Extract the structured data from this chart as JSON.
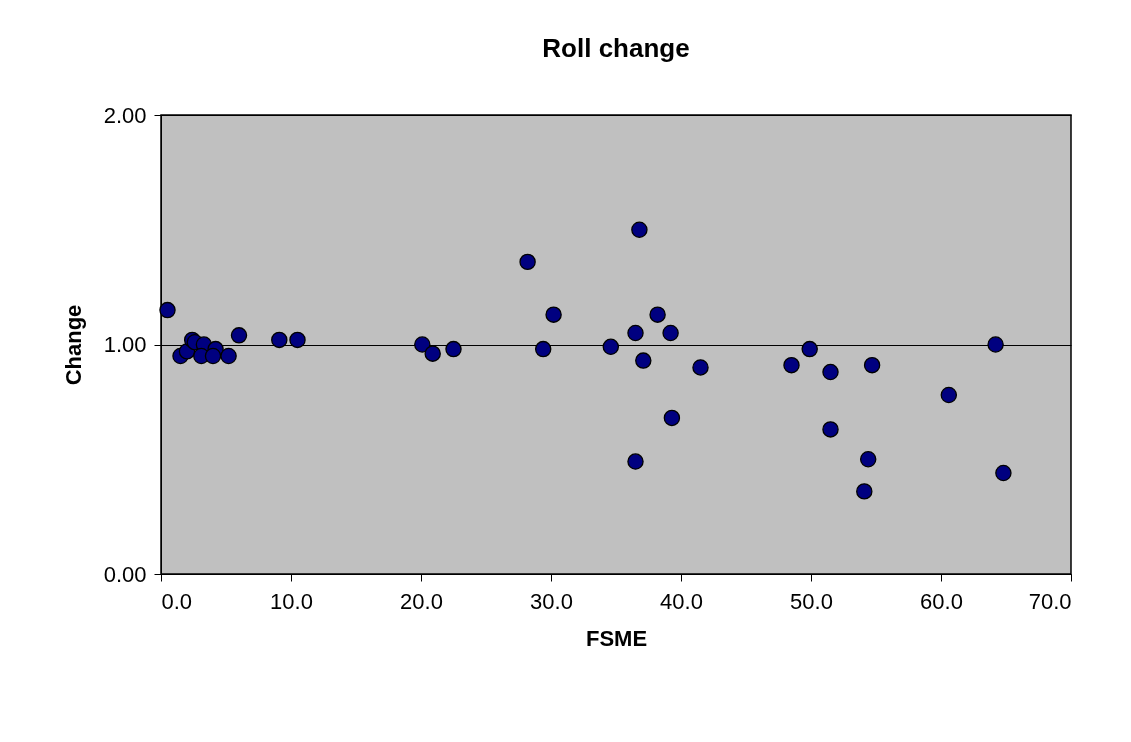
{
  "chart_data": {
    "type": "scatter",
    "title": "Roll change",
    "xlabel": "FSME",
    "ylabel": "Change",
    "x": [
      0.5,
      1.5,
      2.0,
      2.4,
      2.6,
      3.3,
      3.1,
      4.2,
      4.0,
      5.2,
      6.0,
      9.1,
      10.5,
      20.1,
      20.9,
      22.5,
      28.2,
      29.4,
      30.2,
      34.6,
      36.5,
      36.5,
      36.8,
      37.1,
      38.2,
      39.2,
      39.3,
      41.5,
      48.5,
      49.9,
      51.5,
      51.5,
      54.7,
      54.4,
      54.1,
      60.6,
      64.2,
      64.8
    ],
    "series": [
      {
        "color": "#000080",
        "values": [
          1.15,
          0.95,
          0.97,
          1.02,
          1.01,
          1.0,
          0.95,
          0.98,
          0.95,
          0.95,
          1.04,
          1.02,
          1.02,
          1.0,
          0.96,
          0.98,
          1.36,
          0.98,
          1.13,
          0.99,
          1.05,
          0.49,
          1.5,
          0.93,
          1.13,
          1.05,
          0.68,
          0.9,
          0.91,
          0.98,
          0.88,
          0.63,
          0.91,
          0.5,
          0.36,
          0.78,
          1.0,
          0.44
        ]
      }
    ],
    "xlim": [
      0,
      70
    ],
    "ylim": [
      0,
      2
    ],
    "xticks": [
      {
        "value": 0,
        "label": "0.0"
      },
      {
        "value": 10,
        "label": "10.0"
      },
      {
        "value": 20,
        "label": "20.0"
      },
      {
        "value": 30,
        "label": "30.0"
      },
      {
        "value": 40,
        "label": "40.0"
      },
      {
        "value": 50,
        "label": "50.0"
      },
      {
        "value": 60,
        "label": "60.0"
      },
      {
        "value": 70,
        "label": "70.0"
      }
    ],
    "yticks": [
      {
        "value": 0,
        "label": "0.00"
      },
      {
        "value": 1,
        "label": "1.00"
      },
      {
        "value": 2,
        "label": "2.00"
      }
    ],
    "grid": "y",
    "marker": "circle",
    "legend": false
  }
}
